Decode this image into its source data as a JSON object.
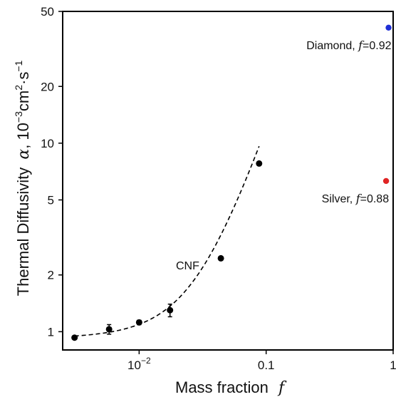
{
  "chart_data": {
    "type": "scatter",
    "title": "",
    "xlabel": "Mass fraction",
    "xlabel_symbol": "f",
    "ylabel": "Thermal Diffusivity",
    "ylabel_symbol": "α",
    "ylabel_units": "10",
    "ylabel_units_rest": "cm",
    "ylabel_units_tail": "s",
    "x_scale": "log",
    "y_scale": "log",
    "xlim": [
      0.0025,
      1
    ],
    "ylim": [
      0.8,
      50
    ],
    "x_ticks": [
      {
        "value": 0.01,
        "base": "10",
        "exp": "−2"
      },
      {
        "value": 0.1,
        "label": "0.1"
      },
      {
        "value": 1,
        "label": "1"
      }
    ],
    "y_ticks": [
      {
        "value": 1,
        "label": "1"
      },
      {
        "value": 2,
        "label": "2"
      },
      {
        "value": 5,
        "label": "5"
      },
      {
        "value": 10,
        "label": "10"
      },
      {
        "value": 20,
        "label": "20"
      },
      {
        "value": 50,
        "label": "50"
      }
    ],
    "series": [
      {
        "name": "CNF",
        "color": "#000000",
        "points": [
          {
            "x": 0.0031,
            "y": 0.93,
            "err": 0
          },
          {
            "x": 0.0058,
            "y": 1.03,
            "err": 0.06
          },
          {
            "x": 0.01,
            "y": 1.12,
            "err": 0.03
          },
          {
            "x": 0.0175,
            "y": 1.3,
            "err": 0.1
          },
          {
            "x": 0.044,
            "y": 2.45,
            "err": 0
          },
          {
            "x": 0.088,
            "y": 7.8,
            "err": 0
          }
        ],
        "fit_curve": {
          "style": "dashed",
          "a": 0.915,
          "b": 7.5,
          "c": 26.0
        }
      }
    ],
    "reference_points": [
      {
        "name": "Diamond",
        "symbol": "f",
        "eq": "=0.92",
        "x": 0.92,
        "y": 41,
        "color": "#1f2fd6"
      },
      {
        "name": "Silver",
        "symbol": "f",
        "eq": "=0.88",
        "x": 0.88,
        "y": 6.3,
        "color": "#e02424"
      }
    ]
  }
}
